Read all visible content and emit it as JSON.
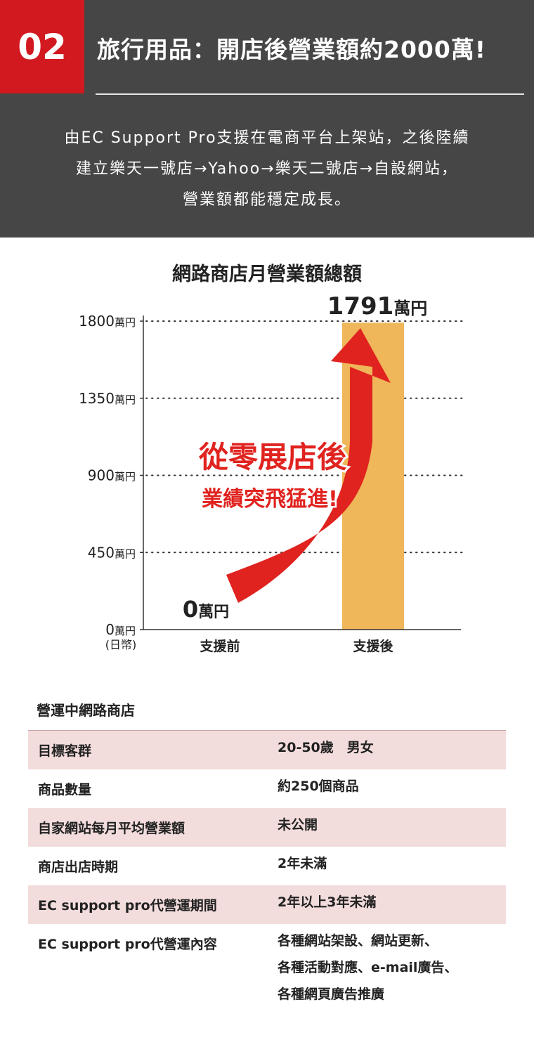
{
  "header": {
    "number": "02",
    "title": "旅行用品：開店後營業額約2000萬!",
    "intro_lines": [
      "由EC Support Pro支援在電商平台上架站，之後陸續",
      "建立樂天一號店→Yahoo→樂天二號店→自設網站，",
      "營業額都能穩定成長。"
    ]
  },
  "colors": {
    "accent_red": "#d21920",
    "header_bg": "#464646",
    "bar": "#f0b65a",
    "arrow": "#e0231f",
    "row_shade": "#f3dcdc"
  },
  "chart_data": {
    "type": "bar",
    "title": "網路商店月營業額總額",
    "categories": [
      "支援前",
      "支援後"
    ],
    "values": [
      0,
      1791
    ],
    "value_labels": [
      "0",
      "1791"
    ],
    "value_unit": "萬円",
    "ylim": [
      0,
      1800
    ],
    "yticks": [
      "0",
      "450",
      "900",
      "1350",
      "1800"
    ],
    "ytick_values": [
      0,
      450,
      900,
      1350,
      1800
    ],
    "ytick_unit": "萬円",
    "yaxis_note": "(日幣)",
    "grid": "dotted",
    "annotation_lines": [
      "從零展店後",
      "業績突飛猛進!"
    ]
  },
  "table": {
    "heading": "營運中網路商店",
    "rows": [
      {
        "label": "目標客群",
        "value": "20-50歲　男女"
      },
      {
        "label": "商品數量",
        "value": "約250個商品"
      },
      {
        "label": "自家網站每月平均營業額",
        "value": "未公開"
      },
      {
        "label": "商店出店時期",
        "value": "2年未滿"
      },
      {
        "label": "EC support pro代營運期間",
        "value": "2年以上3年未滿"
      },
      {
        "label": "EC support pro代營運內容",
        "value": "各種網站架設、網站更新、\n各種活動對應、e-mail廣告、\n各種網頁廣告推廣"
      }
    ]
  }
}
